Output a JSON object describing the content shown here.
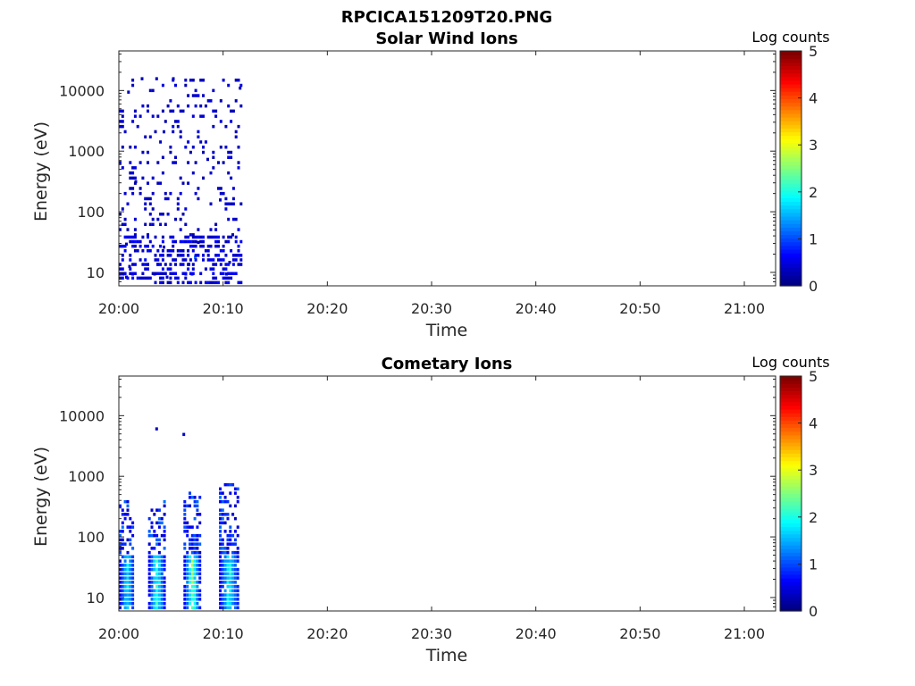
{
  "figure": {
    "filename": "RPCICA151209T20.PNG"
  },
  "chart_data": [
    {
      "type": "heatmap",
      "title": "Solar Wind Ions",
      "xlabel": "Time",
      "ylabel": "Energy (eV)",
      "x_ticks": [
        "20:00",
        "20:10",
        "20:20",
        "20:30",
        "20:40",
        "20:50",
        "21:00"
      ],
      "xlim_minutes_after_2000": [
        0,
        63
      ],
      "y_scale": "log",
      "y_ticks": [
        "10",
        "100",
        "1000",
        "10000"
      ],
      "ylim": [
        6,
        45000
      ],
      "colorbar": {
        "label": "Log counts",
        "ticks": [
          "0",
          "1",
          "2",
          "3",
          "4",
          "5"
        ],
        "range": [
          0,
          5
        ],
        "colormap": "jet"
      },
      "data_extent_minutes": [
        0,
        11.6
      ],
      "cells": [
        {
          "t": 0.3,
          "e": 9,
          "v": 0.3
        },
        {
          "t": 0.6,
          "e": 8,
          "v": 0.4
        },
        {
          "t": 0.9,
          "e": 12,
          "v": 0.3
        },
        {
          "t": 1.2,
          "e": 9,
          "v": 0.5
        },
        {
          "t": 3.3,
          "e": 9,
          "v": 0.4
        },
        {
          "t": 3.6,
          "e": 13,
          "v": 0.3
        },
        {
          "t": 4.5,
          "e": 8,
          "v": 0.3
        },
        {
          "t": 6.3,
          "e": 9,
          "v": 0.4
        },
        {
          "t": 6.6,
          "e": 13,
          "v": 0.3
        },
        {
          "t": 6.9,
          "e": 9,
          "v": 0.5
        },
        {
          "t": 7.2,
          "e": 17,
          "v": 1.3
        },
        {
          "t": 10.2,
          "e": 9,
          "v": 0.4
        },
        {
          "t": 10.5,
          "e": 14,
          "v": 0.3
        },
        {
          "t": 0.6,
          "e": 28,
          "v": 0.3
        },
        {
          "t": 4.2,
          "e": 25,
          "v": 0.3
        },
        {
          "t": 7.5,
          "e": 30,
          "v": 0.3
        },
        {
          "t": 10.8,
          "e": 40,
          "v": 0.3
        }
      ],
      "scatter_cells_sparse": [
        {
          "t": 0.8,
          "e": 9000,
          "v": 0.3
        },
        {
          "t": 2.1,
          "e": 15000,
          "v": 0.3
        },
        {
          "t": 3.5,
          "e": 15000,
          "v": 0.3
        },
        {
          "t": 5.1,
          "e": 15000,
          "v": 0.3
        },
        {
          "t": 11.5,
          "e": 10500,
          "v": 0.3
        },
        {
          "t": 4.2,
          "e": 2000,
          "v": 0.3
        },
        {
          "t": 8.4,
          "e": 700,
          "v": 0.3
        },
        {
          "t": 1.5,
          "e": 300,
          "v": 0.3
        },
        {
          "t": 9.6,
          "e": 150,
          "v": 0.3
        }
      ]
    },
    {
      "type": "heatmap",
      "title": "Cometary Ions",
      "xlabel": "Time",
      "ylabel": "Energy (eV)",
      "x_ticks": [
        "20:00",
        "20:10",
        "20:20",
        "20:30",
        "20:40",
        "20:50",
        "21:00"
      ],
      "xlim_minutes_after_2000": [
        0,
        63
      ],
      "y_scale": "log",
      "y_ticks": [
        "10",
        "100",
        "1000",
        "10000"
      ],
      "ylim": [
        6,
        45000
      ],
      "colorbar": {
        "label": "Log counts",
        "ticks": [
          "0",
          "1",
          "2",
          "3",
          "4",
          "5"
        ],
        "range": [
          0,
          5
        ],
        "colormap": "jet"
      },
      "data_extent_minutes": [
        0,
        11.4
      ],
      "bursts": [
        {
          "t_start": 0.0,
          "t_end": 1.4,
          "e_top": 380,
          "peak_log": 1.8
        },
        {
          "t_start": 2.8,
          "t_end": 4.3,
          "e_top": 380,
          "peak_log": 2.2
        },
        {
          "t_start": 6.2,
          "t_end": 7.7,
          "e_top": 550,
          "peak_log": 2.6
        },
        {
          "t_start": 9.6,
          "t_end": 11.4,
          "e_top": 700,
          "peak_log": 2.0
        }
      ],
      "isolated_cells": [
        {
          "t": 3.5,
          "e": 5800,
          "v": 0.3
        },
        {
          "t": 6.1,
          "e": 4700,
          "v": 0.4
        }
      ]
    }
  ]
}
